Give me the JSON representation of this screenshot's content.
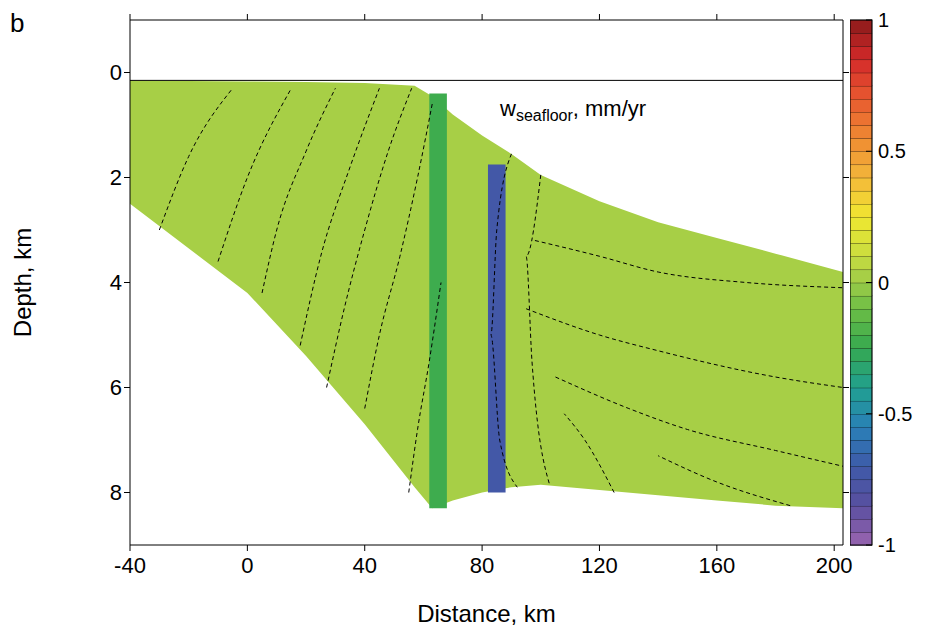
{
  "chart_data": {
    "type": "section",
    "panel_label": "b",
    "annotation": {
      "text": "w",
      "subscript": "seafloor",
      "suffix": ", mm/yr"
    },
    "x_label": "Distance, km",
    "y_label": "Depth, km",
    "xlim": [
      -40,
      203
    ],
    "xticks": [
      -40,
      0,
      40,
      80,
      120,
      160,
      200
    ],
    "ylim": [
      9,
      -1
    ],
    "yticks": [
      0,
      2,
      4,
      6,
      8
    ],
    "sea_level": 0.15,
    "section": {
      "x": [
        -40,
        0,
        20,
        40,
        57,
        63,
        70,
        80,
        90,
        100,
        120,
        140,
        160,
        180,
        203
      ],
      "top": [
        0.15,
        0.17,
        0.18,
        0.2,
        0.25,
        0.45,
        0.8,
        1.2,
        1.55,
        1.95,
        2.45,
        2.85,
        3.15,
        3.45,
        3.8
      ],
      "bottom": [
        2.5,
        4.2,
        5.4,
        6.7,
        7.9,
        8.3,
        8.15,
        8.0,
        7.9,
        7.85,
        7.95,
        8.05,
        8.15,
        8.25,
        8.3
      ],
      "value": 0.02
    },
    "cells": [
      {
        "x": [
          62,
          68
        ],
        "top": 0.4,
        "bottom": 8.3,
        "value": -0.25
      },
      {
        "x": [
          82,
          88
        ],
        "top": 1.75,
        "bottom": 8.0,
        "value": -0.75
      }
    ],
    "contours": [
      [
        [
          -30,
          3.0
        ],
        [
          -20,
          1.6
        ],
        [
          -5,
          0.3
        ]
      ],
      [
        [
          -10,
          3.6
        ],
        [
          0,
          2.0
        ],
        [
          15,
          0.3
        ]
      ],
      [
        [
          5,
          4.2
        ],
        [
          10,
          3.0
        ],
        [
          20,
          1.5
        ],
        [
          30,
          0.3
        ]
      ],
      [
        [
          18,
          5.2
        ],
        [
          25,
          3.5
        ],
        [
          35,
          1.8
        ],
        [
          45,
          0.3
        ]
      ],
      [
        [
          27,
          6.0
        ],
        [
          33,
          4.5
        ],
        [
          40,
          3.0
        ],
        [
          48,
          1.5
        ],
        [
          56,
          0.3
        ]
      ],
      [
        [
          40,
          6.4
        ],
        [
          45,
          5.0
        ],
        [
          52,
          3.5
        ],
        [
          58,
          2.0
        ],
        [
          63,
          0.6
        ]
      ],
      [
        [
          55,
          8.0
        ],
        [
          58,
          6.8
        ],
        [
          62,
          5.5
        ],
        [
          66,
          4.0
        ]
      ],
      [
        [
          90,
          1.55
        ],
        [
          85,
          3.0
        ],
        [
          83,
          5.0
        ],
        [
          86,
          7.0
        ],
        [
          92,
          7.9
        ]
      ],
      [
        [
          100,
          1.95
        ],
        [
          95,
          3.5
        ],
        [
          97,
          5.5
        ],
        [
          103,
          7.85
        ]
      ],
      [
        [
          98,
          3.2
        ],
        [
          120,
          3.5
        ],
        [
          140,
          3.8
        ],
        [
          170,
          4.0
        ],
        [
          203,
          4.1
        ]
      ],
      [
        [
          95,
          4.5
        ],
        [
          120,
          5.0
        ],
        [
          140,
          5.3
        ],
        [
          180,
          5.8
        ],
        [
          203,
          6.0
        ]
      ],
      [
        [
          105,
          5.8
        ],
        [
          130,
          6.4
        ],
        [
          150,
          6.8
        ],
        [
          180,
          7.2
        ],
        [
          203,
          7.5
        ]
      ],
      [
        [
          125,
          8.0
        ],
        [
          115,
          7.0
        ],
        [
          108,
          6.5
        ]
      ],
      [
        [
          185,
          8.25
        ],
        [
          160,
          7.8
        ],
        [
          140,
          7.3
        ]
      ]
    ],
    "line_style": "dashed",
    "colorbar": {
      "range": [
        -1,
        1
      ],
      "ticks": [
        -1,
        -0.5,
        0,
        0.5,
        1
      ]
    }
  }
}
